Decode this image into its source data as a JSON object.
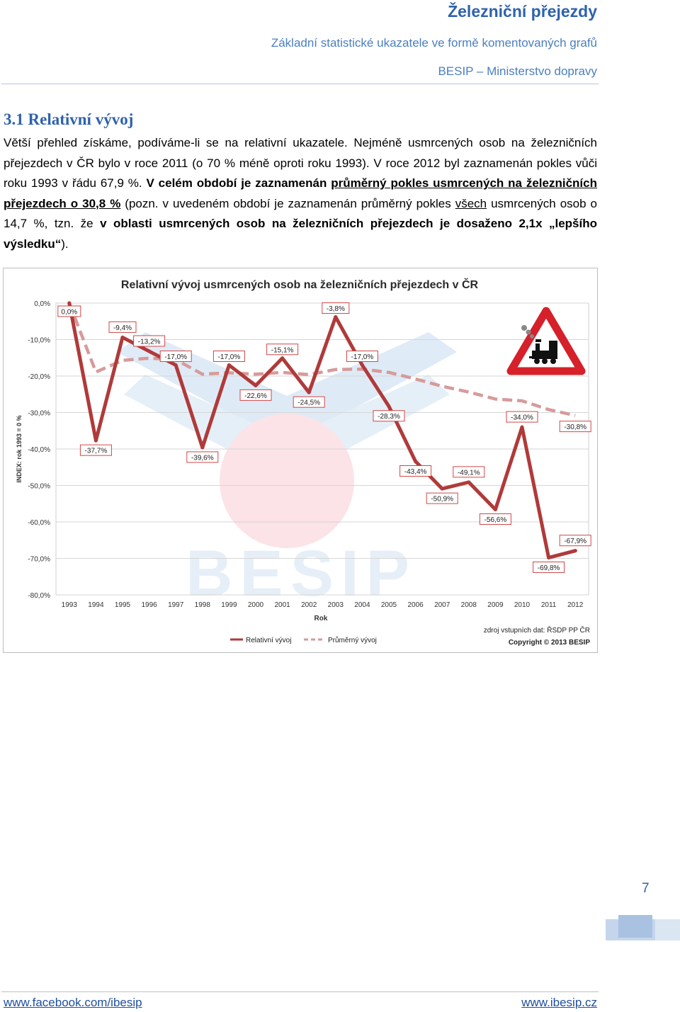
{
  "header": {
    "title": "Železniční přejezdy",
    "subtitle": "Základní statistické ukazatele ve formě komentovaných grafů",
    "org": "BESIP – Ministerstvo dopravy"
  },
  "section": {
    "title": "3.1 Relativní vývoj",
    "paragraph": {
      "t1": "Větší přehled získáme, podíváme-li se na relativní ukazatele. Nejméně usmrcených osob na železničních přejezdech v ČR bylo v roce 2011 (o 70 % méně oproti roku 1993). V roce 2012 byl zaznamenán pokles vůči roku 1993 v řádu 67,9 %. ",
      "b1": "V celém období je zaznamenán ",
      "bu1": "průměrný pokles usmrcených na železničních přejezdech o 30,8 %",
      "t2": " (pozn. v uvedeném období je zaznamenán průměrný pokles ",
      "u1": "všech",
      "t3": " usmrcených osob o 14,7 %, tzn. že ",
      "b2": "v oblasti usmrcených osob na železničních přejezdech je dosaženo 2,1x „lepšího výsledku“",
      "t4": ")."
    }
  },
  "chart_data": {
    "type": "line",
    "title": "Relativní vývoj usmrcených osob na železničních přejezdech v ČR",
    "xlabel": "Rok",
    "ylabel": "INDEX: rok 1993 = 0 %",
    "categories": [
      "1993",
      "1994",
      "1995",
      "1996",
      "1997",
      "1998",
      "1999",
      "2000",
      "2001",
      "2002",
      "2003",
      "2004",
      "2005",
      "2006",
      "2007",
      "2008",
      "2009",
      "2010",
      "2011",
      "2012"
    ],
    "ylim": [
      -80,
      0
    ],
    "yticks": [
      0,
      -10,
      -20,
      -30,
      -40,
      -50,
      -60,
      -70,
      -80
    ],
    "ytick_labels": [
      "0,0%",
      "-10,0%",
      "-20,0%",
      "-30,0%",
      "-40,0%",
      "-50,0%",
      "-60,0%",
      "-70,0%",
      "-80,0%"
    ],
    "series": [
      {
        "name": "Relativní vývoj",
        "color": "#b03a3a",
        "values": [
          0.0,
          -37.7,
          -9.4,
          -13.2,
          -17.0,
          -39.6,
          -17.0,
          -22.6,
          -15.1,
          -24.5,
          -3.8,
          -17.0,
          -28.3,
          -43.4,
          -50.9,
          -49.1,
          -56.6,
          -34.0,
          -69.8,
          -67.9
        ],
        "data_labels": [
          "0,0%",
          "-37,7%",
          "-9,4%",
          "-13,2%",
          "-17,0%",
          "-39,6%",
          "-17,0%",
          "-22,6%",
          "-15,1%",
          "-24,5%",
          "-3,8%",
          "-17,0%",
          "-28,3%",
          "-43,4%",
          "-50,9%",
          "-49,1%",
          "-56,6%",
          "-34,0%",
          "-69,8%",
          "-67,9%"
        ]
      },
      {
        "name": "Průměrný vývoj",
        "color": "#d79a9a",
        "dashed": true,
        "values": [
          0.0,
          -18.9,
          -15.7,
          -15.1,
          -15.5,
          -19.5,
          -19.1,
          -19.5,
          -19.0,
          -19.6,
          -18.2,
          -18.1,
          -19.0,
          -20.8,
          -22.8,
          -24.4,
          -26.3,
          -26.8,
          -29.2,
          -30.8
        ],
        "end_label": "-30,8%"
      }
    ],
    "notes": [
      "zdroj vstupních dat: ŘSDP PP ČR",
      "Copyright © 2013 BESIP"
    ],
    "watermark": "BESIP",
    "legend": "bottom-left",
    "grid": true,
    "icon": "railway-crossing-warning-sign-icon"
  },
  "page_number": "7",
  "footer": {
    "left": "www.facebook.com/ibesip",
    "right": "www.ibesip.cz"
  }
}
